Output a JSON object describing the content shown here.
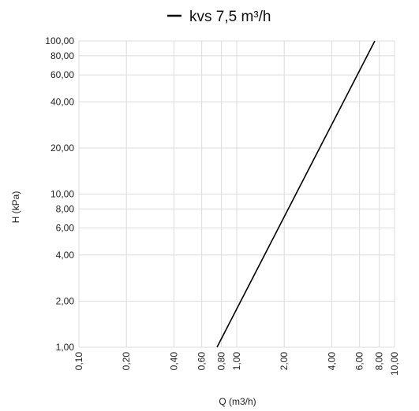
{
  "chart_data": {
    "type": "line",
    "title": "",
    "xlabel": "Q (m3/h)",
    "ylabel": "H (kPa)",
    "x_scale": "log",
    "y_scale": "log",
    "xlim": [
      0.1,
      10
    ],
    "ylim": [
      1,
      100
    ],
    "x_ticks": [
      0.1,
      0.2,
      0.4,
      0.6,
      0.8,
      1,
      2,
      4,
      6,
      8,
      10
    ],
    "x_tick_labels": [
      "0,10",
      "0,20",
      "0,40",
      "0,60",
      "0,80",
      "1,00",
      "2,00",
      "4,00",
      "6,00",
      "8,00",
      "10,00"
    ],
    "y_ticks": [
      1,
      2,
      4,
      6,
      8,
      10,
      20,
      40,
      60,
      80,
      100
    ],
    "y_tick_labels": [
      "1,00",
      "2,00",
      "4,00",
      "6,00",
      "8,00",
      "10,00",
      "20,00",
      "40,00",
      "60,00",
      "80,00",
      "100,00"
    ],
    "grid": true,
    "legend_position": "top-center",
    "series": [
      {
        "name": "kvs 7,5 m³/h",
        "color": "#000000",
        "x": [
          0.75,
          7.5
        ],
        "y": [
          1,
          100
        ]
      }
    ]
  }
}
